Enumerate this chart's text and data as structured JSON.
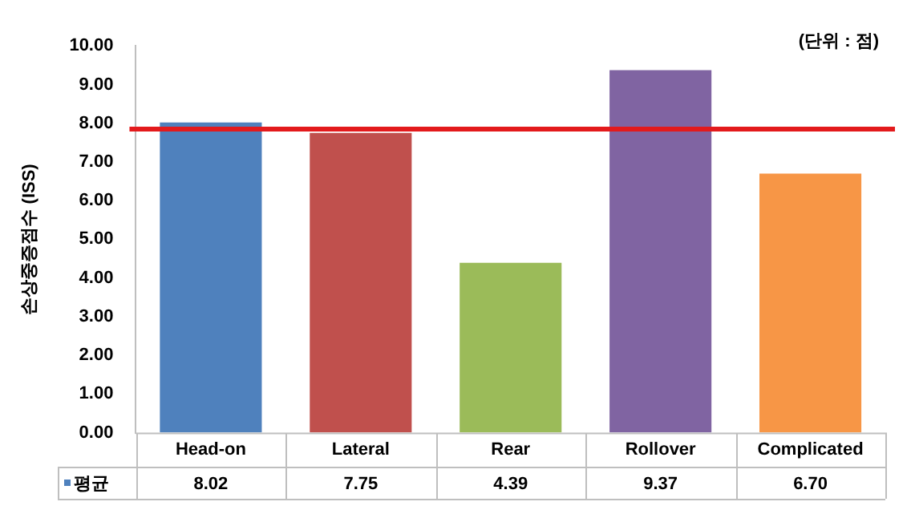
{
  "chart_data": {
    "type": "bar",
    "ylabel": "손상중증점수 (ISS)",
    "annotations": [
      "(단위 : 점)"
    ],
    "categories": [
      "Head-on",
      "Lateral",
      "Rear",
      "Rollover",
      "Complicated"
    ],
    "series": [
      {
        "name": "평균",
        "color": "#4f81bd",
        "colors": [
          "#4f81bd",
          "#c0504d",
          "#9bbb59",
          "#8064a2",
          "#f79646"
        ],
        "values": [
          8.02,
          7.75,
          4.39,
          9.37,
          6.7
        ],
        "value_labels": [
          "8.02",
          "7.75",
          "4.39",
          "9.37",
          "6.70"
        ]
      }
    ],
    "ylim": [
      0,
      10
    ],
    "yticks": [
      {
        "value": 0,
        "label": "0.00"
      },
      {
        "value": 1,
        "label": "1.00"
      },
      {
        "value": 2,
        "label": "2.00"
      },
      {
        "value": 3,
        "label": "3.00"
      },
      {
        "value": 4,
        "label": "4.00"
      },
      {
        "value": 5,
        "label": "5.00"
      },
      {
        "value": 6,
        "label": "6.00"
      },
      {
        "value": 7,
        "label": "7.00"
      },
      {
        "value": 8,
        "label": "8.00"
      },
      {
        "value": 9,
        "label": "9.00"
      },
      {
        "value": 10,
        "label": "10.00"
      }
    ],
    "ref_lines": [
      {
        "axis": "y",
        "value": 7.85,
        "color": "#e31a1c"
      }
    ],
    "legend": "bottom",
    "grid": false
  }
}
